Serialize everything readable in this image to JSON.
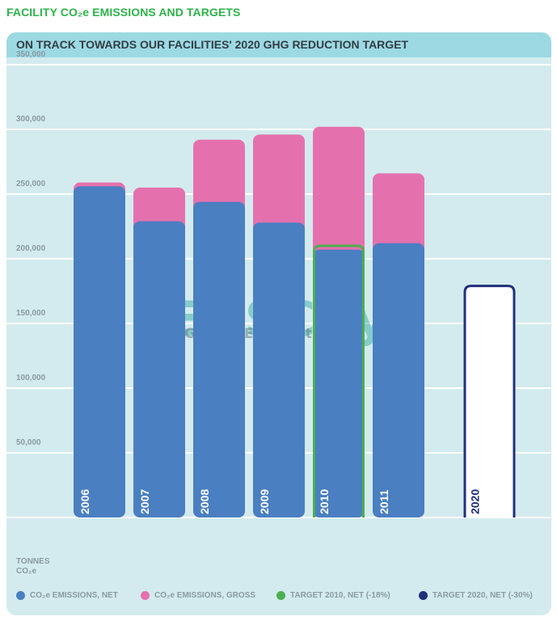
{
  "header": {
    "title": "FACILITY CO₂e EMISSIONS AND TARGETS"
  },
  "panel": {
    "title": "ON TRACK TOWARDS OUR FACILITIES' 2020 GHG REDUCTION TARGET",
    "unit_label_line1": "TONNES",
    "unit_label_line2": "CO₂e"
  },
  "watermark": {
    "line1": "EHSCity",
    "line2": "Global EHS Network"
  },
  "colors": {
    "net": "#4a7fc1",
    "gross": "#e471ae",
    "target_2010": "#4caf50",
    "target_2020": "#21307a",
    "grid": "#ffffff",
    "tick_text": "#8a9aa2"
  },
  "legend": [
    {
      "label": "CO₂e EMISSIONS, NET",
      "color": "#4a7fc1"
    },
    {
      "label": "CO₂e EMISSIONS, GROSS",
      "color": "#e471ae"
    },
    {
      "label": "TARGET 2010, NET (-18%)",
      "color": "#4caf50"
    },
    {
      "label": "TARGET 2020, NET (-30%)",
      "color": "#21307a"
    }
  ],
  "chart_data": {
    "type": "bar",
    "title": "ON TRACK TOWARDS OUR FACILITIES' 2020 GHG REDUCTION TARGET",
    "ylabel": "TONNES CO₂e",
    "ylim": [
      0,
      350000
    ],
    "yticks": [
      {
        "value": 50000,
        "label": "50,000"
      },
      {
        "value": 100000,
        "label": "100,000"
      },
      {
        "value": 150000,
        "label": "150,000"
      },
      {
        "value": 200000,
        "label": "200,000"
      },
      {
        "value": 250000,
        "label": "250,000"
      },
      {
        "value": 300000,
        "label": "300,000"
      },
      {
        "value": 350000,
        "label": "350,000"
      }
    ],
    "grid": true,
    "legend_position": "bottom",
    "categories": [
      "2006",
      "2007",
      "2008",
      "2009",
      "2010",
      "2011",
      "2020"
    ],
    "series": [
      {
        "name": "CO₂e EMISSIONS, NET",
        "values": [
          256000,
          229000,
          244000,
          228000,
          207000,
          212000,
          null
        ]
      },
      {
        "name": "CO₂e EMISSIONS, GROSS",
        "values": [
          259000,
          255000,
          292000,
          296000,
          302000,
          266000,
          null
        ]
      },
      {
        "name": "TARGET 2010, NET (-18%)",
        "values": [
          null,
          null,
          null,
          null,
          210000,
          null,
          null
        ]
      },
      {
        "name": "TARGET 2020, NET (-30%)",
        "values": [
          null,
          null,
          null,
          null,
          null,
          null,
          179000
        ]
      }
    ]
  }
}
